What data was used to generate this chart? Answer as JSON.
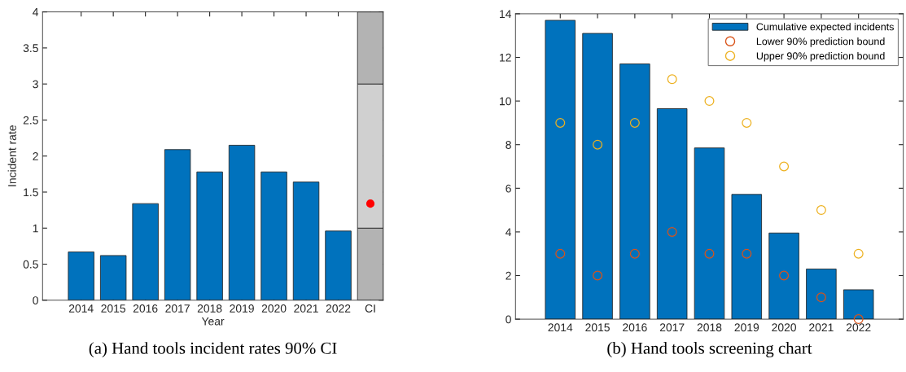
{
  "chart_data": [
    {
      "type": "bar",
      "stacked": true,
      "xlabel": "Year",
      "ylabel": "Incident rate",
      "categories": [
        "2014",
        "2015",
        "2016",
        "2017",
        "2018",
        "2019",
        "2020",
        "2021",
        "2022",
        "CI"
      ],
      "series": [
        {
          "color": "#0072bd",
          "values": [
            0.67,
            0.62,
            1.34,
            2.09,
            1.78,
            2.15,
            1.78,
            1.64,
            0.96,
            null
          ]
        },
        {
          "color": "#b3b3b3",
          "values": [
            null,
            null,
            null,
            null,
            null,
            null,
            null,
            null,
            null,
            1
          ]
        },
        {
          "color": "#d0d0d0",
          "values": [
            null,
            null,
            null,
            null,
            null,
            null,
            null,
            null,
            null,
            2
          ]
        },
        {
          "color": "#b3b3b3",
          "values": [
            null,
            null,
            null,
            null,
            null,
            null,
            null,
            null,
            null,
            1
          ]
        },
        {
          "type": "scatter",
          "color": "#ff0000",
          "x": [
            "CI"
          ],
          "values": [
            1.34
          ],
          "marker": "circle"
        }
      ],
      "ylim": [
        0,
        4
      ],
      "yticks": [
        0,
        0.5,
        1,
        1.5,
        2,
        2.5,
        3,
        3.5,
        4
      ],
      "grid": false,
      "legend": false,
      "annotations": [
        "(a) Hand tools incident rates 90% CI"
      ]
    },
    {
      "type": "bar",
      "categories": [
        "2014",
        "2015",
        "2016",
        "2017",
        "2018",
        "2019",
        "2020",
        "2021",
        "2022"
      ],
      "series": [
        {
          "name": "Cumulative expected incidents",
          "color": "#0072bd",
          "values": [
            13.7,
            13.1,
            11.7,
            9.65,
            7.85,
            5.72,
            3.95,
            2.3,
            1.35
          ]
        },
        {
          "type": "scatter",
          "name": "Lower 90% prediction bound",
          "color": "#d95319",
          "values": [
            3,
            2,
            3,
            4,
            3,
            3,
            2,
            1,
            0
          ],
          "marker": "circle"
        },
        {
          "type": "scatter",
          "name": "Upper 90% prediction bound",
          "color": "#edb120",
          "values": [
            9,
            8,
            9,
            11,
            10,
            9,
            7,
            5,
            3
          ],
          "marker": "circle"
        }
      ],
      "ylim": [
        0,
        14
      ],
      "yticks": [
        0,
        2,
        4,
        6,
        8,
        10,
        12,
        14
      ],
      "grid": false,
      "legend": "top right",
      "annotations": [
        "(b) Hand tools screening chart"
      ]
    }
  ]
}
